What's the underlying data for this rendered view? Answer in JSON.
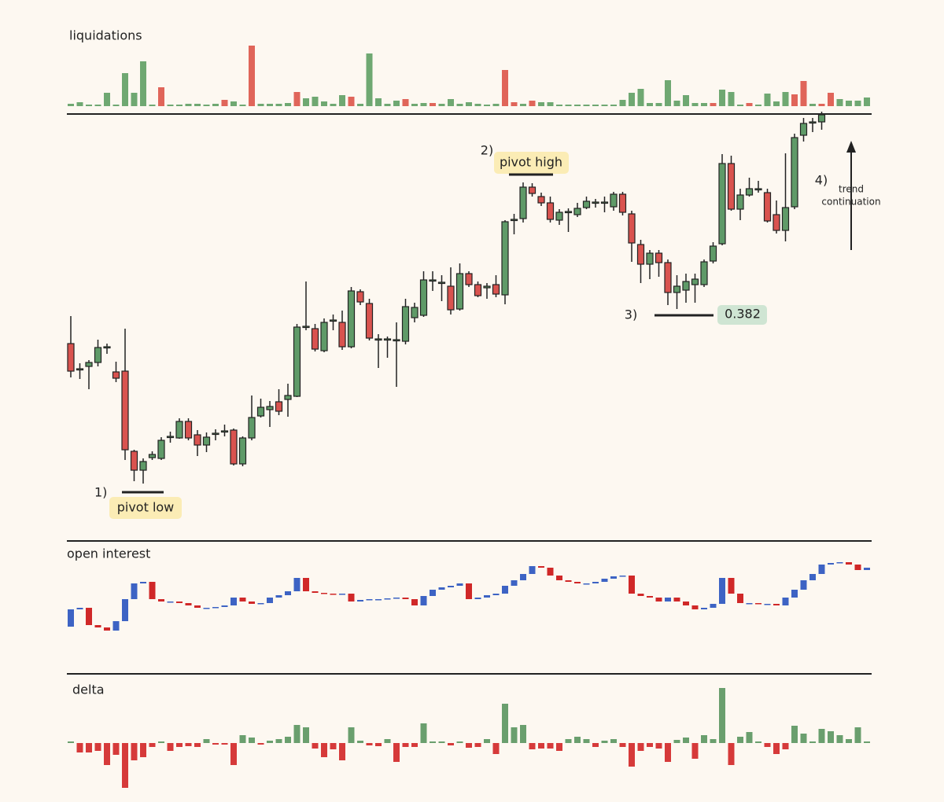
{
  "chart_data": [
    {
      "type": "bar",
      "title": "liquidations",
      "ylim": [
        0,
        100
      ],
      "values": [
        3,
        5,
        2,
        2,
        17,
        2,
        42,
        17,
        57,
        2,
        24,
        2,
        2,
        3,
        3,
        2,
        3,
        8,
        6,
        2,
        77,
        3,
        3,
        3,
        4,
        18,
        10,
        12,
        6,
        3,
        14,
        12,
        3,
        67,
        10,
        3,
        7,
        9,
        3,
        4,
        4,
        3,
        9,
        3,
        5,
        3,
        2,
        3,
        46,
        5,
        3,
        7,
        5,
        5,
        2,
        2,
        2,
        2,
        2,
        2,
        2,
        8,
        17,
        22,
        4,
        4,
        33,
        7,
        14,
        4,
        4,
        4,
        21,
        18,
        2,
        4,
        2,
        16,
        6,
        18,
        15,
        32,
        3,
        3,
        17,
        9,
        7,
        7,
        11
      ],
      "colors": [
        "#6fa872",
        "#6fa872",
        "#6fa872",
        "#6fa872",
        "#6fa872",
        "#6fa872",
        "#6fa872",
        "#6fa872",
        "#6fa872",
        "#6fa872",
        "#e0655a",
        "#6fa872",
        "#6fa872",
        "#6fa872",
        "#6fa872",
        "#6fa872",
        "#6fa872",
        "#e0655a",
        "#6fa872",
        "#6fa872",
        "#e0655a",
        "#6fa872",
        "#6fa872",
        "#6fa872",
        "#6fa872",
        "#e0655a",
        "#6fa872",
        "#6fa872",
        "#6fa872",
        "#6fa872",
        "#6fa872",
        "#e0655a",
        "#6fa872",
        "#6fa872",
        "#6fa872",
        "#6fa872",
        "#6fa872",
        "#e0655a",
        "#6fa872",
        "#6fa872",
        "#e0655a",
        "#6fa872",
        "#6fa872",
        "#6fa872",
        "#6fa872",
        "#6fa872",
        "#6fa872",
        "#6fa872",
        "#e0655a",
        "#e0655a",
        "#6fa872",
        "#e0655a",
        "#6fa872",
        "#6fa872",
        "#6fa872",
        "#6fa872",
        "#6fa872",
        "#6fa872",
        "#6fa872",
        "#6fa872",
        "#6fa872",
        "#6fa872",
        "#6fa872",
        "#6fa872",
        "#6fa872",
        "#6fa872",
        "#6fa872",
        "#6fa872",
        "#6fa872",
        "#6fa872",
        "#6fa872",
        "#e0655a",
        "#6fa872",
        "#6fa872",
        "#6fa872",
        "#e0655a",
        "#6fa872",
        "#6fa872",
        "#6fa872",
        "#6fa872",
        "#e0655a",
        "#e0655a",
        "#6fa872",
        "#e0655a",
        "#e0655a",
        "#6fa872",
        "#6fa872",
        "#6fa872",
        "#6fa872"
      ]
    },
    {
      "type": "candlestick",
      "ylim": [
        0,
        535
      ],
      "up_color": "#5f9a68",
      "down_color": "#d9534f",
      "open": [
        243,
        210,
        214,
        219,
        238,
        207,
        208,
        106,
        82,
        98,
        97,
        124,
        123,
        144,
        127,
        114,
        128,
        131,
        133,
        90,
        123,
        151,
        159,
        169,
        172,
        176,
        264,
        262,
        234,
        272,
        270,
        239,
        309,
        294,
        248,
        248,
        247,
        246,
        276,
        279,
        323,
        320,
        316,
        287,
        332,
        318,
        314,
        318,
        305,
        400,
        402,
        442,
        430,
        422,
        400,
        410,
        407,
        416,
        422,
        422,
        417,
        433,
        408,
        369,
        344,
        358,
        346,
        308,
        311,
        318,
        318,
        348,
        370,
        472,
        414,
        432,
        439,
        435,
        407,
        387,
        417,
        508,
        524,
        525
      ],
      "high": [
        278,
        218,
        222,
        248,
        243,
        220,
        262,
        108,
        97,
        106,
        124,
        131,
        148,
        148,
        133,
        130,
        134,
        140,
        135,
        125,
        177,
        173,
        170,
        185,
        192,
        268,
        322,
        268,
        275,
        280,
        285,
        315,
        312,
        300,
        255,
        252,
        270,
        300,
        295,
        335,
        335,
        330,
        340,
        345,
        335,
        322,
        320,
        330,
        400,
        408,
        448,
        447,
        435,
        430,
        414,
        415,
        422,
        430,
        427,
        430,
        436,
        436,
        412,
        375,
        362,
        362,
        350,
        330,
        332,
        332,
        350,
        372,
        484,
        482,
        440,
        454,
        450,
        440,
        425,
        485,
        510,
        530,
        530,
        538
      ],
      "low": [
        200,
        198,
        185,
        214,
        230,
        194,
        95,
        68,
        65,
        95,
        95,
        117,
        122,
        120,
        100,
        105,
        120,
        125,
        88,
        87,
        120,
        149,
        137,
        152,
        150,
        175,
        260,
        233,
        232,
        260,
        235,
        237,
        292,
        247,
        212,
        225,
        188,
        242,
        270,
        277,
        310,
        297,
        280,
        285,
        315,
        302,
        300,
        302,
        293,
        382,
        397,
        430,
        418,
        397,
        394,
        385,
        404,
        414,
        416,
        410,
        412,
        406,
        347,
        320,
        325,
        328,
        292,
        287,
        295,
        295,
        315,
        345,
        368,
        412,
        400,
        430,
        435,
        397,
        383,
        373,
        414,
        500,
        512,
        515
      ],
      "close": [
        208,
        211,
        219,
        238,
        239,
        199,
        108,
        82,
        93,
        102,
        120,
        125,
        144,
        123,
        114,
        124,
        129,
        132,
        90,
        123,
        149,
        162,
        163,
        157,
        177,
        264,
        265,
        236,
        270,
        273,
        239,
        310,
        296,
        250,
        249,
        249,
        248,
        290,
        289,
        324,
        324,
        321,
        286,
        332,
        318,
        304,
        316,
        306,
        398,
        401,
        442,
        434,
        422,
        401,
        410,
        411,
        415,
        424,
        423,
        423,
        433,
        410,
        371,
        344,
        358,
        346,
        308,
        316,
        322,
        325,
        347,
        367,
        472,
        414,
        432,
        440,
        440,
        399,
        387,
        416,
        505,
        523,
        525,
        534
      ],
      "annotations": [
        "1)",
        "pivot low",
        "2)",
        "pivot high",
        "3)",
        "0.382",
        "4)",
        "trend",
        "continuation"
      ]
    },
    {
      "type": "candlestick",
      "title": "open interest",
      "ylim": [
        -10,
        100
      ],
      "up_color": "#3d63c4",
      "down_color": "#d02828",
      "open": [
        3,
        25,
        27,
        5,
        2,
        -2,
        10,
        38,
        58,
        60,
        38,
        35,
        35,
        33,
        30,
        27,
        27,
        28,
        30,
        40,
        35,
        32,
        33,
        40,
        43,
        48,
        65,
        48,
        46,
        45,
        44,
        45,
        35,
        37,
        38,
        38,
        39,
        40,
        38,
        30,
        42,
        50,
        53,
        55,
        58,
        38,
        40,
        43,
        45,
        55,
        62,
        70,
        80,
        78,
        68,
        62,
        60,
        58,
        58,
        60,
        64,
        67,
        68,
        45,
        42,
        40,
        35,
        40,
        35,
        30,
        25,
        27,
        32,
        65,
        45,
        33,
        33,
        32,
        32,
        30,
        40,
        50,
        62,
        70,
        82,
        84,
        85,
        82,
        75
      ],
      "close": [
        25,
        27,
        5,
        2,
        -2,
        10,
        38,
        58,
        60,
        38,
        35,
        35,
        33,
        30,
        27,
        27,
        28,
        30,
        40,
        35,
        32,
        33,
        40,
        43,
        48,
        65,
        48,
        46,
        45,
        44,
        45,
        35,
        37,
        38,
        38,
        39,
        40,
        38,
        30,
        42,
        50,
        53,
        55,
        58,
        38,
        40,
        43,
        45,
        55,
        62,
        70,
        80,
        78,
        68,
        62,
        60,
        58,
        58,
        60,
        64,
        67,
        68,
        45,
        42,
        40,
        35,
        40,
        35,
        30,
        25,
        27,
        32,
        65,
        45,
        33,
        33,
        32,
        32,
        30,
        40,
        50,
        62,
        70,
        82,
        84,
        85,
        82,
        75,
        78
      ]
    },
    {
      "type": "bar",
      "title": "delta",
      "ylim": [
        -60,
        80
      ],
      "up_color": "#6a9f6e",
      "down_color": "#d63a3a",
      "values": [
        2,
        -12,
        -12,
        -10,
        -28,
        -15,
        -57,
        -22,
        -18,
        -5,
        2,
        -10,
        -5,
        -4,
        -5,
        5,
        -2,
        -2,
        -28,
        10,
        7,
        -2,
        3,
        5,
        8,
        23,
        20,
        -7,
        -18,
        -8,
        -22,
        20,
        3,
        -3,
        -4,
        5,
        -24,
        -5,
        -5,
        25,
        2,
        2,
        -3,
        2,
        -6,
        -5,
        5,
        -14,
        50,
        20,
        23,
        -8,
        -7,
        -7,
        -10,
        5,
        8,
        5,
        -5,
        3,
        5,
        -5,
        -30,
        -10,
        -5,
        -7,
        -24,
        4,
        7,
        -20,
        10,
        5,
        70,
        -28,
        8,
        14,
        2,
        -5,
        -14,
        -8,
        22,
        12,
        2,
        18,
        15,
        10,
        5,
        20,
        2
      ]
    }
  ]
}
